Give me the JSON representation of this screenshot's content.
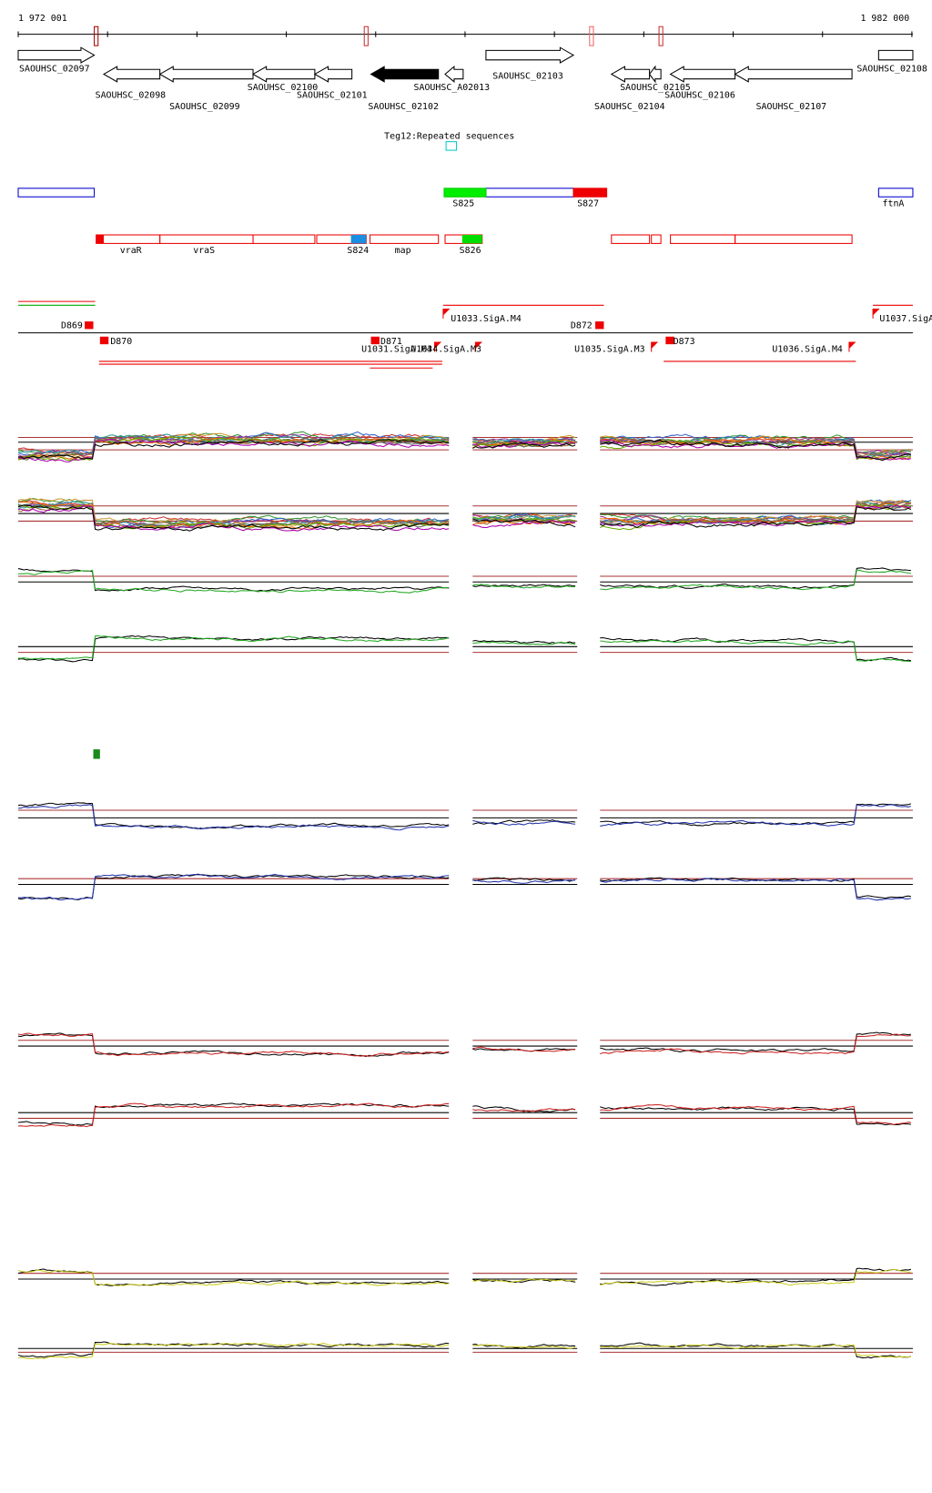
{
  "ruler": {
    "start": "1 972 001",
    "end": "1 982 000"
  },
  "genes": [
    "SAOUHSC_02097",
    "SAOUHSC_02098",
    "SAOUHSC_02099",
    "SAOUHSC_02100",
    "SAOUHSC_02101",
    "SAOUHSC_02102",
    "SAOUHSC_A02013",
    "SAOUHSC_02103",
    "SAOUHSC_02104",
    "SAOUHSC_02105",
    "SAOUHSC_02106",
    "SAOUHSC_02107",
    "SAOUHSC_02108"
  ],
  "repeat": "Teg12:Repeated sequences",
  "features": [
    "S825",
    "S827",
    "ftnA",
    "vraR",
    "vraS",
    "S824",
    "map",
    "S826"
  ],
  "promoters": [
    "D869",
    "D870",
    "D871",
    "U1031.SigA.M4",
    "U1034.SigA.M3",
    "U1033.SigA.M4",
    "D872",
    "U1035.SigA.M3",
    "D873",
    "U1036.SigA.M4",
    "U1037.SigA"
  ]
}
